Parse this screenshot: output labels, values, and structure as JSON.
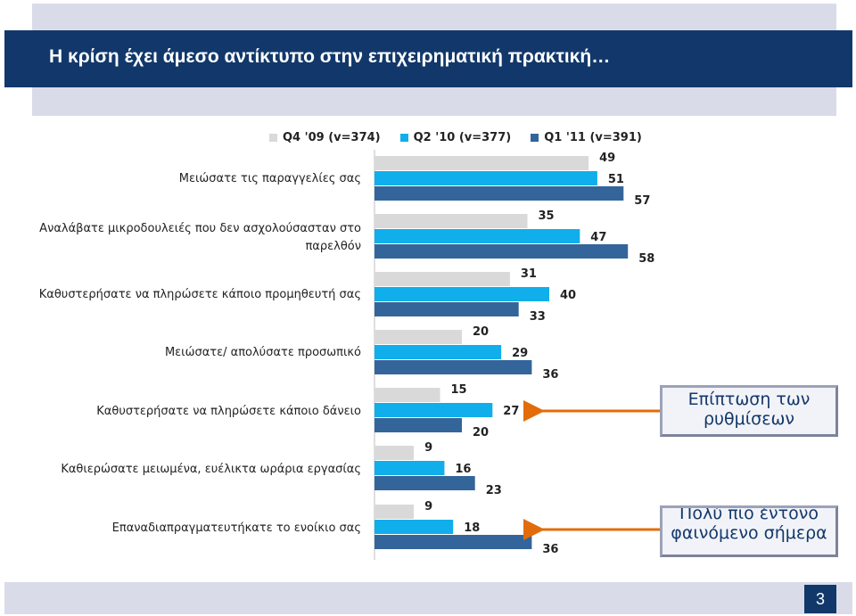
{
  "title": "Η κρίση έχει άμεσο αντίκτυπο στην επιχειρηματική πρακτική…",
  "page_number": "3",
  "colors": {
    "title_bg": "#12386b",
    "band": "#d9dce8",
    "series": [
      "#d9d9d9",
      "#10aeea",
      "#33659a"
    ],
    "arrow": "#e36c0a"
  },
  "callouts": [
    {
      "text": "Επίπτωση των ρυθμίσεων"
    },
    {
      "text": "Πολύ πιο έντονο φαινόμενο σήμερα"
    }
  ],
  "chart_data": {
    "type": "bar",
    "orientation": "horizontal",
    "categories": [
      "Μειώσατε τις παραγγελίες σας",
      "Αναλάβατε μικροδουλειές που δεν ασχολούσασταν στο παρελθόν",
      "Καθυστερήσατε να πληρώσετε κάποιο προμηθευτή σας",
      "Μειώσατε/ απολύσατε προσωπικό",
      "Καθυστερήσατε να πληρώσετε κάποιο δάνειο",
      "Καθιερώσατε μειωμένα, ευέλικτα ωράρια εργασίας",
      "Επαναδιαπραγματευτήκατε το ενοίκιο σας"
    ],
    "series": [
      {
        "name": "Q4 '09 (v=374)",
        "values": [
          49,
          35,
          31,
          20,
          15,
          9,
          9
        ]
      },
      {
        "name": "Q2 '10 (v=377)",
        "values": [
          51,
          47,
          40,
          29,
          27,
          16,
          18
        ]
      },
      {
        "name": "Q1 '11 (v=391)",
        "values": [
          57,
          58,
          33,
          36,
          20,
          23,
          36
        ]
      }
    ],
    "legend_position": "top",
    "grid": false
  }
}
